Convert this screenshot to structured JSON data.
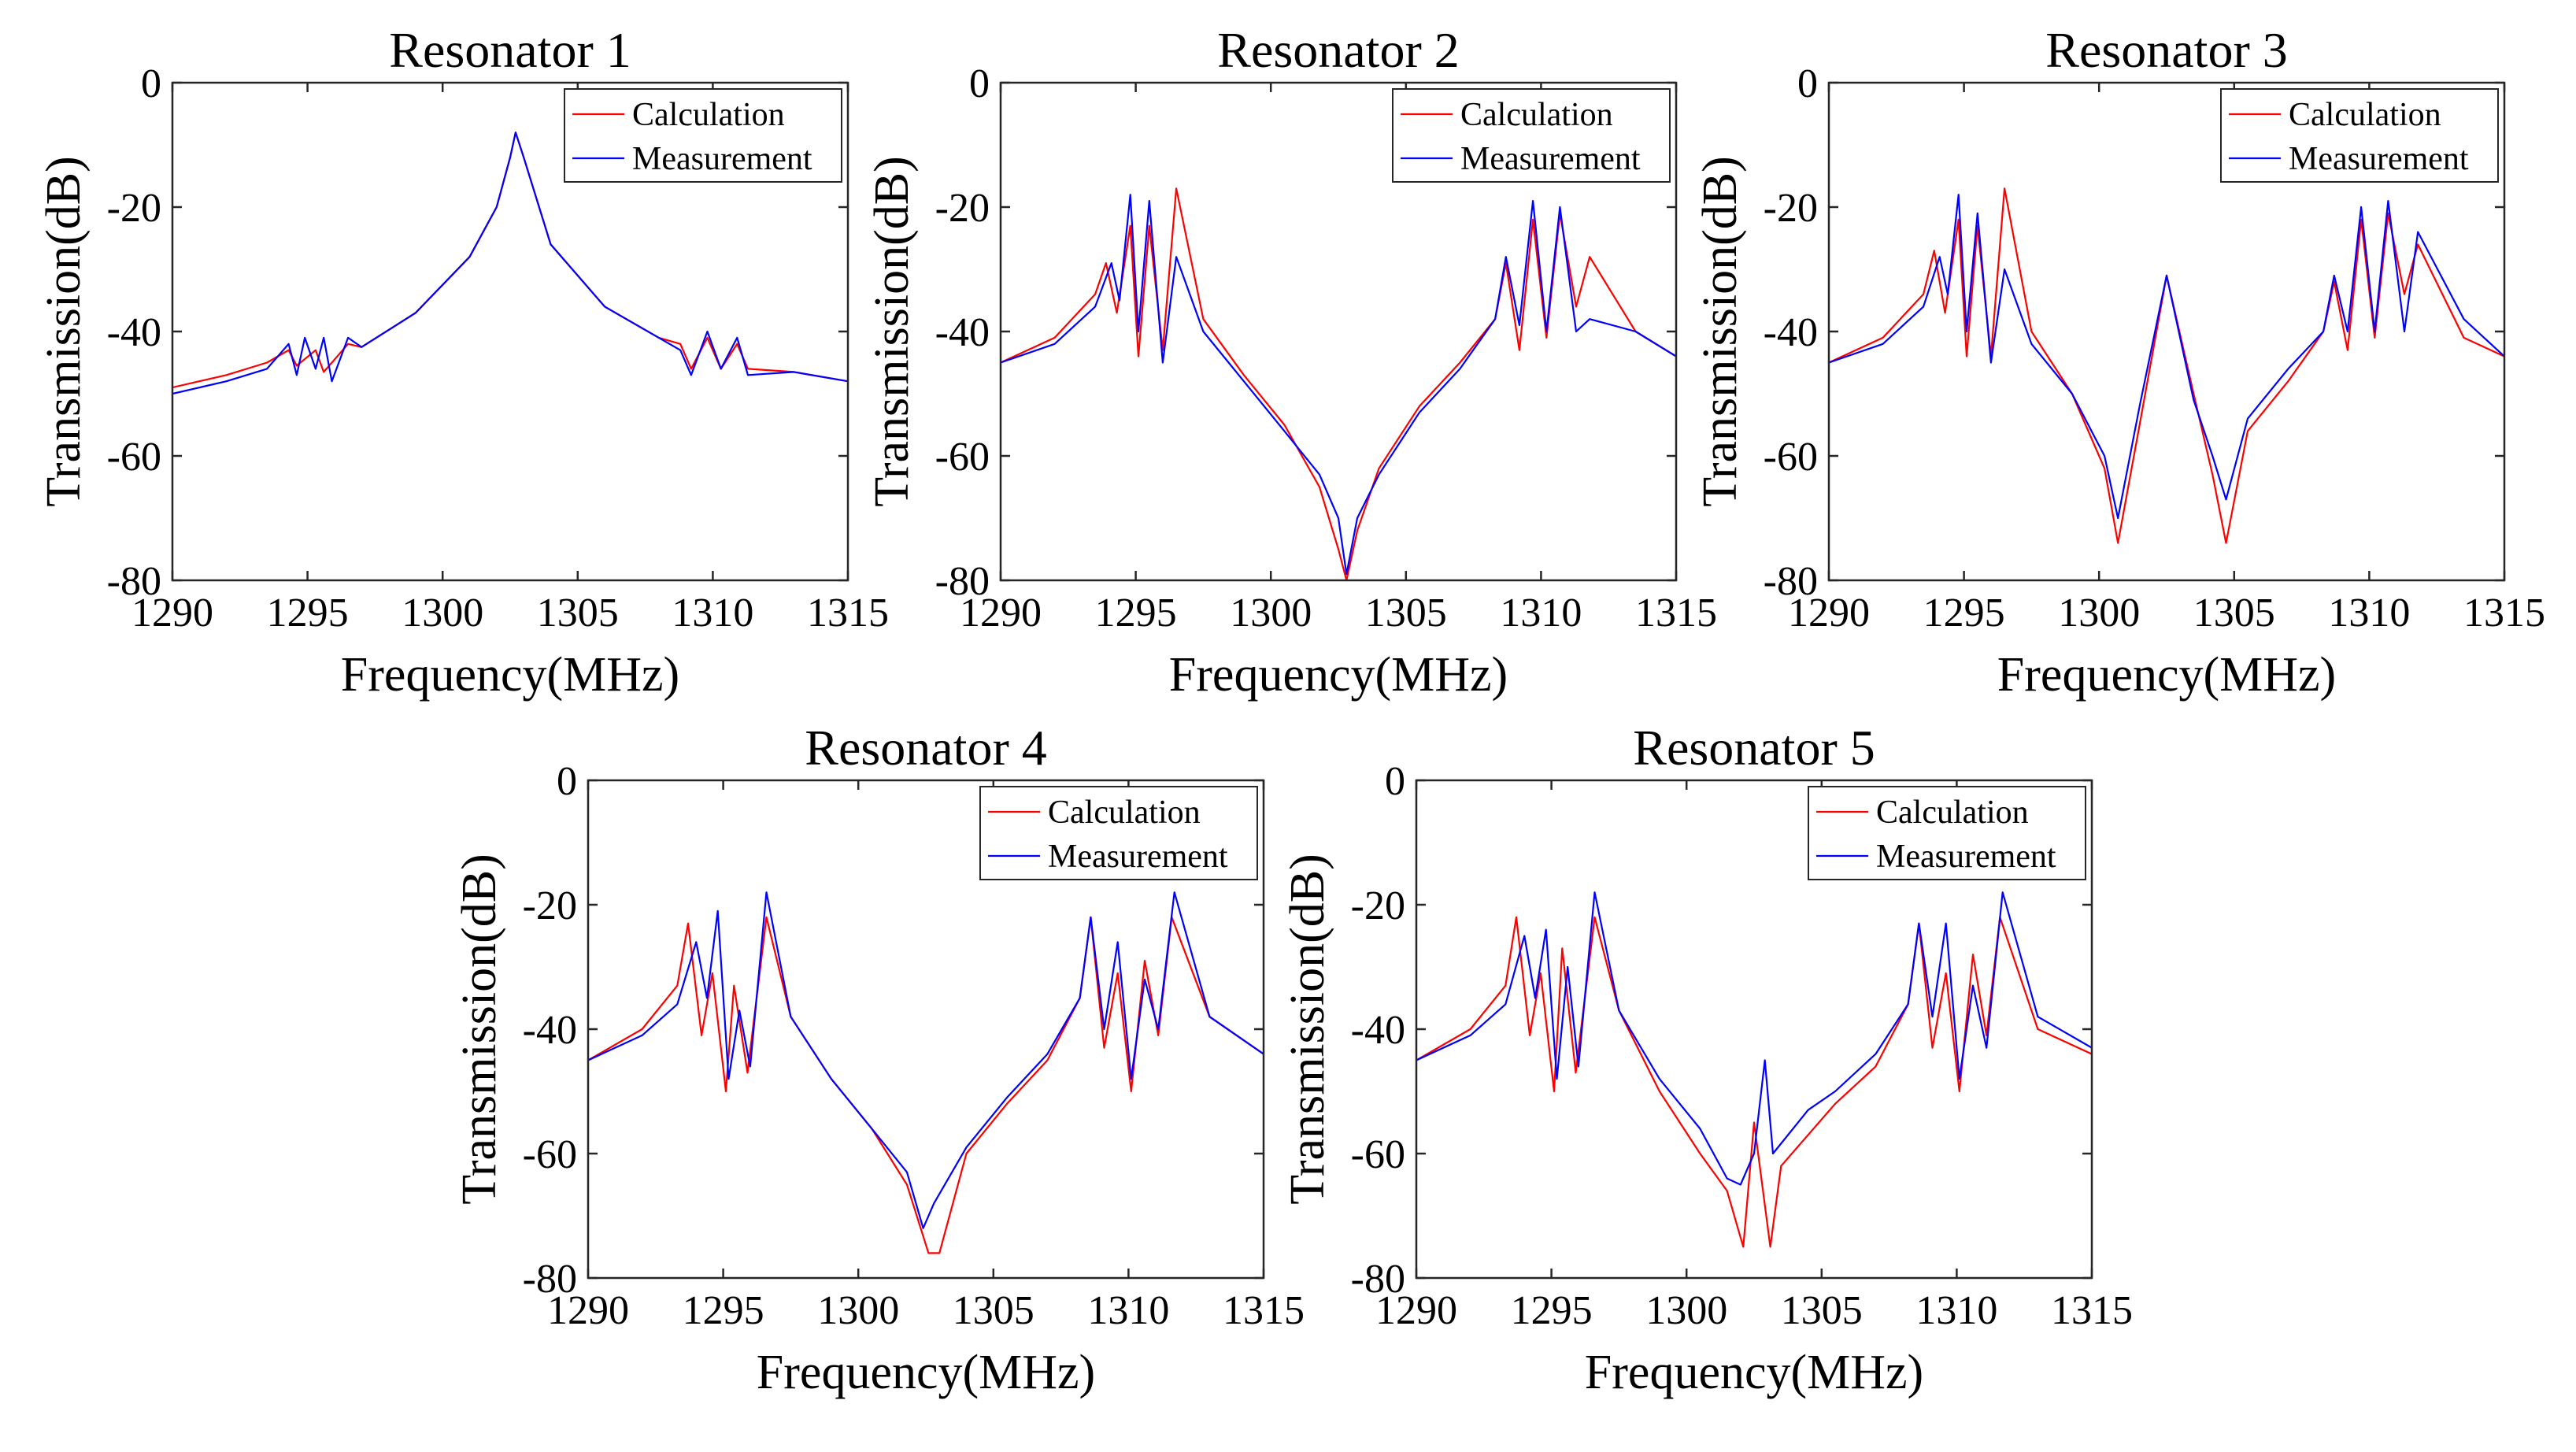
{
  "colors": {
    "calculation": "#ff0000",
    "measurement": "#0000ff",
    "axis": "#262626"
  },
  "chart_data": [
    {
      "type": "line",
      "title": "Resonator 1",
      "xlabel": "Frequency(MHz)",
      "ylabel": "Transmission(dB)",
      "xlim": [
        1290,
        1315
      ],
      "ylim": [
        -80,
        0
      ],
      "xticks": [
        "1290",
        "1295",
        "1300",
        "1305",
        "1310",
        "1315"
      ],
      "yticks": [
        "0",
        "-20",
        "-40",
        "-60",
        "-80"
      ],
      "legend": [
        "Calculation",
        "Measurement"
      ],
      "legend_position": "top-right",
      "series": [
        {
          "name": "Calculation",
          "x": [
            1290,
            1292,
            1293.5,
            1294.3,
            1294.6,
            1295.3,
            1295.6,
            1296.5,
            1297,
            1299,
            1301,
            1302,
            1302.5,
            1302.7,
            1303,
            1304,
            1306,
            1308,
            1308.8,
            1309.2,
            1309.8,
            1310.3,
            1310.9,
            1311.3,
            1313,
            1315
          ],
          "y": [
            -49,
            -47,
            -45,
            -43,
            -45.5,
            -43,
            -46.5,
            -42,
            -42.5,
            -37,
            -28,
            -20,
            -12,
            -8,
            -12,
            -26,
            -36,
            -41,
            -42,
            -46,
            -41,
            -46,
            -42,
            -46,
            -46.5,
            -48
          ]
        },
        {
          "name": "Measurement",
          "x": [
            1290,
            1292,
            1293.5,
            1294.3,
            1294.6,
            1294.9,
            1295.3,
            1295.6,
            1295.9,
            1296.5,
            1297,
            1299,
            1301,
            1302,
            1302.5,
            1302.7,
            1303,
            1304,
            1306,
            1308,
            1308.8,
            1309.2,
            1309.8,
            1310.3,
            1310.9,
            1311.3,
            1313,
            1315
          ],
          "y": [
            -50,
            -48,
            -46,
            -42,
            -47,
            -41,
            -46,
            -41,
            -48,
            -41,
            -42.5,
            -37,
            -28,
            -20,
            -12,
            -8,
            -12,
            -26,
            -36,
            -41,
            -43,
            -47,
            -40,
            -46,
            -41,
            -47,
            -46.5,
            -48
          ]
        }
      ]
    },
    {
      "type": "line",
      "title": "Resonator 2",
      "xlabel": "Frequency(MHz)",
      "ylabel": "Transmission(dB)",
      "xlim": [
        1290,
        1315
      ],
      "ylim": [
        -80,
        0
      ],
      "xticks": [
        "1290",
        "1295",
        "1300",
        "1305",
        "1310",
        "1315"
      ],
      "yticks": [
        "0",
        "-20",
        "-40",
        "-60",
        "-80"
      ],
      "legend": [
        "Calculation",
        "Measurement"
      ],
      "legend_position": "top-right",
      "series": [
        {
          "name": "Calculation",
          "x": [
            1290,
            1292,
            1293.5,
            1293.9,
            1294.3,
            1294.8,
            1295.1,
            1295.5,
            1296,
            1296.5,
            1297.5,
            1299,
            1300.5,
            1301.8,
            1302.5,
            1302.8,
            1303.2,
            1304,
            1305.5,
            1307,
            1308.3,
            1308.7,
            1309.2,
            1309.7,
            1310.2,
            1310.7,
            1311.3,
            1311.8,
            1313.5,
            1315
          ],
          "y": [
            -45,
            -41,
            -34,
            -29,
            -37,
            -23,
            -44,
            -23,
            -43,
            -17,
            -38,
            -47,
            -55,
            -65,
            -75,
            -80,
            -72,
            -62,
            -52,
            -45,
            -38,
            -29,
            -43,
            -22,
            -41,
            -21,
            -36,
            -28,
            -40,
            -44
          ]
        },
        {
          "name": "Measurement",
          "x": [
            1290,
            1292,
            1293.5,
            1294.1,
            1294.4,
            1294.8,
            1295.1,
            1295.5,
            1296,
            1296.5,
            1297.5,
            1299,
            1300.5,
            1301.8,
            1302.5,
            1302.8,
            1303.2,
            1304,
            1305.5,
            1307,
            1308.3,
            1308.7,
            1309.2,
            1309.7,
            1310.2,
            1310.7,
            1311.3,
            1311.8,
            1313.5,
            1315
          ],
          "y": [
            -45,
            -42,
            -36,
            -29,
            -35,
            -18,
            -40,
            -19,
            -45,
            -28,
            -40,
            -48,
            -56,
            -63,
            -70,
            -79,
            -70,
            -63,
            -53,
            -46,
            -38,
            -28,
            -39,
            -19,
            -40,
            -20,
            -40,
            -38,
            -40,
            -44
          ]
        }
      ]
    },
    {
      "type": "line",
      "title": "Resonator 3",
      "xlabel": "Frequency(MHz)",
      "ylabel": "Transmission(dB)",
      "xlim": [
        1290,
        1315
      ],
      "ylim": [
        -80,
        0
      ],
      "xticks": [
        "1290",
        "1295",
        "1300",
        "1305",
        "1310",
        "1315"
      ],
      "yticks": [
        "0",
        "-20",
        "-40",
        "-60",
        "-80"
      ],
      "legend": [
        "Calculation",
        "Measurement"
      ],
      "legend_position": "top-right",
      "series": [
        {
          "name": "Calculation",
          "x": [
            1290,
            1292,
            1293.5,
            1293.9,
            1294.3,
            1294.8,
            1295.1,
            1295.5,
            1296,
            1296.5,
            1297.5,
            1299,
            1300.2,
            1300.7,
            1301.5,
            1302.5,
            1303.5,
            1304.2,
            1304.7,
            1305.5,
            1307,
            1308.3,
            1308.7,
            1309.2,
            1309.7,
            1310.2,
            1310.7,
            1311.3,
            1311.8,
            1313.5,
            1315
          ],
          "y": [
            -45,
            -41,
            -34,
            -27,
            -37,
            -22,
            -44,
            -23,
            -44,
            -17,
            -40,
            -50,
            -62,
            -74,
            -55,
            -31,
            -50,
            -63,
            -74,
            -56,
            -48,
            -40,
            -32,
            -43,
            -22,
            -41,
            -21,
            -34,
            -26,
            -41,
            -44
          ]
        },
        {
          "name": "Measurement",
          "x": [
            1290,
            1292,
            1293.5,
            1294.1,
            1294.4,
            1294.8,
            1295.1,
            1295.5,
            1296,
            1296.5,
            1297.5,
            1299,
            1300.2,
            1300.7,
            1301.5,
            1302.5,
            1303.5,
            1304.2,
            1304.7,
            1305.5,
            1307,
            1308.3,
            1308.7,
            1309.2,
            1309.7,
            1310.2,
            1310.7,
            1311.3,
            1311.8,
            1313.5,
            1315
          ],
          "y": [
            -45,
            -42,
            -36,
            -28,
            -34,
            -18,
            -40,
            -21,
            -45,
            -30,
            -42,
            -50,
            -60,
            -70,
            -52,
            -31,
            -51,
            -60,
            -67,
            -54,
            -46,
            -40,
            -31,
            -40,
            -20,
            -40,
            -19,
            -40,
            -24,
            -38,
            -44
          ]
        }
      ]
    },
    {
      "type": "line",
      "title": "Resonator 4",
      "xlabel": "Frequency(MHz)",
      "ylabel": "Transmission(dB)",
      "xlim": [
        1290,
        1315
      ],
      "ylim": [
        -80,
        0
      ],
      "xticks": [
        "1290",
        "1295",
        "1300",
        "1305",
        "1310",
        "1315"
      ],
      "yticks": [
        "0",
        "-20",
        "-40",
        "-60",
        "-80"
      ],
      "legend": [
        "Calculation",
        "Measurement"
      ],
      "legend_position": "top-right",
      "series": [
        {
          "name": "Calculation",
          "x": [
            1290,
            1292,
            1293.3,
            1293.7,
            1294.2,
            1294.6,
            1295.1,
            1295.4,
            1295.9,
            1296.6,
            1297.5,
            1299,
            1300.5,
            1301.8,
            1302.6,
            1303,
            1304,
            1305.5,
            1307,
            1308.2,
            1308.6,
            1309.1,
            1309.6,
            1310.1,
            1310.6,
            1311.1,
            1311.6,
            1313,
            1315
          ],
          "y": [
            -45,
            -40,
            -33,
            -23,
            -41,
            -31,
            -50,
            -33,
            -47,
            -22,
            -38,
            -48,
            -56,
            -65,
            -76,
            -76,
            -60,
            -52,
            -45,
            -35,
            -22,
            -43,
            -31,
            -50,
            -29,
            -41,
            -22,
            -38,
            -44
          ]
        },
        {
          "name": "Measurement",
          "x": [
            1290,
            1292,
            1293.3,
            1294,
            1294.4,
            1294.8,
            1295.2,
            1295.6,
            1296,
            1296.6,
            1297.5,
            1299,
            1300.5,
            1301.8,
            1302.4,
            1302.8,
            1304,
            1305.5,
            1307,
            1308.2,
            1308.6,
            1309.1,
            1309.6,
            1310.1,
            1310.6,
            1311.1,
            1311.7,
            1313,
            1315
          ],
          "y": [
            -45,
            -41,
            -36,
            -26,
            -35,
            -21,
            -48,
            -37,
            -46,
            -18,
            -38,
            -48,
            -56,
            -63,
            -72,
            -68,
            -59,
            -51,
            -44,
            -35,
            -22,
            -40,
            -26,
            -48,
            -32,
            -40,
            -18,
            -38,
            -44
          ]
        }
      ]
    },
    {
      "type": "line",
      "title": "Resonator 5",
      "xlabel": "Frequency(MHz)",
      "ylabel": "Transmission(dB)",
      "xlim": [
        1290,
        1315
      ],
      "ylim": [
        -80,
        0
      ],
      "xticks": [
        "1290",
        "1295",
        "1300",
        "1305",
        "1310",
        "1315"
      ],
      "yticks": [
        "0",
        "-20",
        "-40",
        "-60",
        "-80"
      ],
      "legend": [
        "Calculation",
        "Measurement"
      ],
      "legend_position": "top-right",
      "series": [
        {
          "name": "Calculation",
          "x": [
            1290,
            1292,
            1293.3,
            1293.7,
            1294.2,
            1294.6,
            1295.1,
            1295.4,
            1295.9,
            1296.6,
            1297.5,
            1299,
            1300.5,
            1301.5,
            1302.1,
            1302.5,
            1303.1,
            1303.5,
            1304.5,
            1305.5,
            1307,
            1308.2,
            1308.6,
            1309.1,
            1309.6,
            1310.1,
            1310.6,
            1311.1,
            1311.6,
            1313,
            1315
          ],
          "y": [
            -45,
            -40,
            -33,
            -22,
            -41,
            -31,
            -50,
            -27,
            -47,
            -22,
            -37,
            -50,
            -60,
            -66,
            -75,
            -55,
            -75,
            -62,
            -57,
            -52,
            -46,
            -36,
            -23,
            -43,
            -31,
            -50,
            -28,
            -41,
            -22,
            -40,
            -44
          ]
        },
        {
          "name": "Measurement",
          "x": [
            1290,
            1292,
            1293.3,
            1294,
            1294.4,
            1294.8,
            1295.2,
            1295.6,
            1296,
            1296.6,
            1297.5,
            1299,
            1300.5,
            1301.5,
            1302,
            1302.5,
            1302.9,
            1303.2,
            1304.5,
            1305.5,
            1307,
            1308.2,
            1308.6,
            1309.1,
            1309.6,
            1310.1,
            1310.6,
            1311.1,
            1311.7,
            1313,
            1315
          ],
          "y": [
            -45,
            -41,
            -36,
            -25,
            -35,
            -24,
            -48,
            -30,
            -46,
            -18,
            -37,
            -48,
            -56,
            -64,
            -65,
            -60,
            -45,
            -60,
            -53,
            -50,
            -44,
            -36,
            -23,
            -38,
            -23,
            -48,
            -33,
            -43,
            -18,
            -38,
            -43
          ]
        }
      ]
    }
  ]
}
